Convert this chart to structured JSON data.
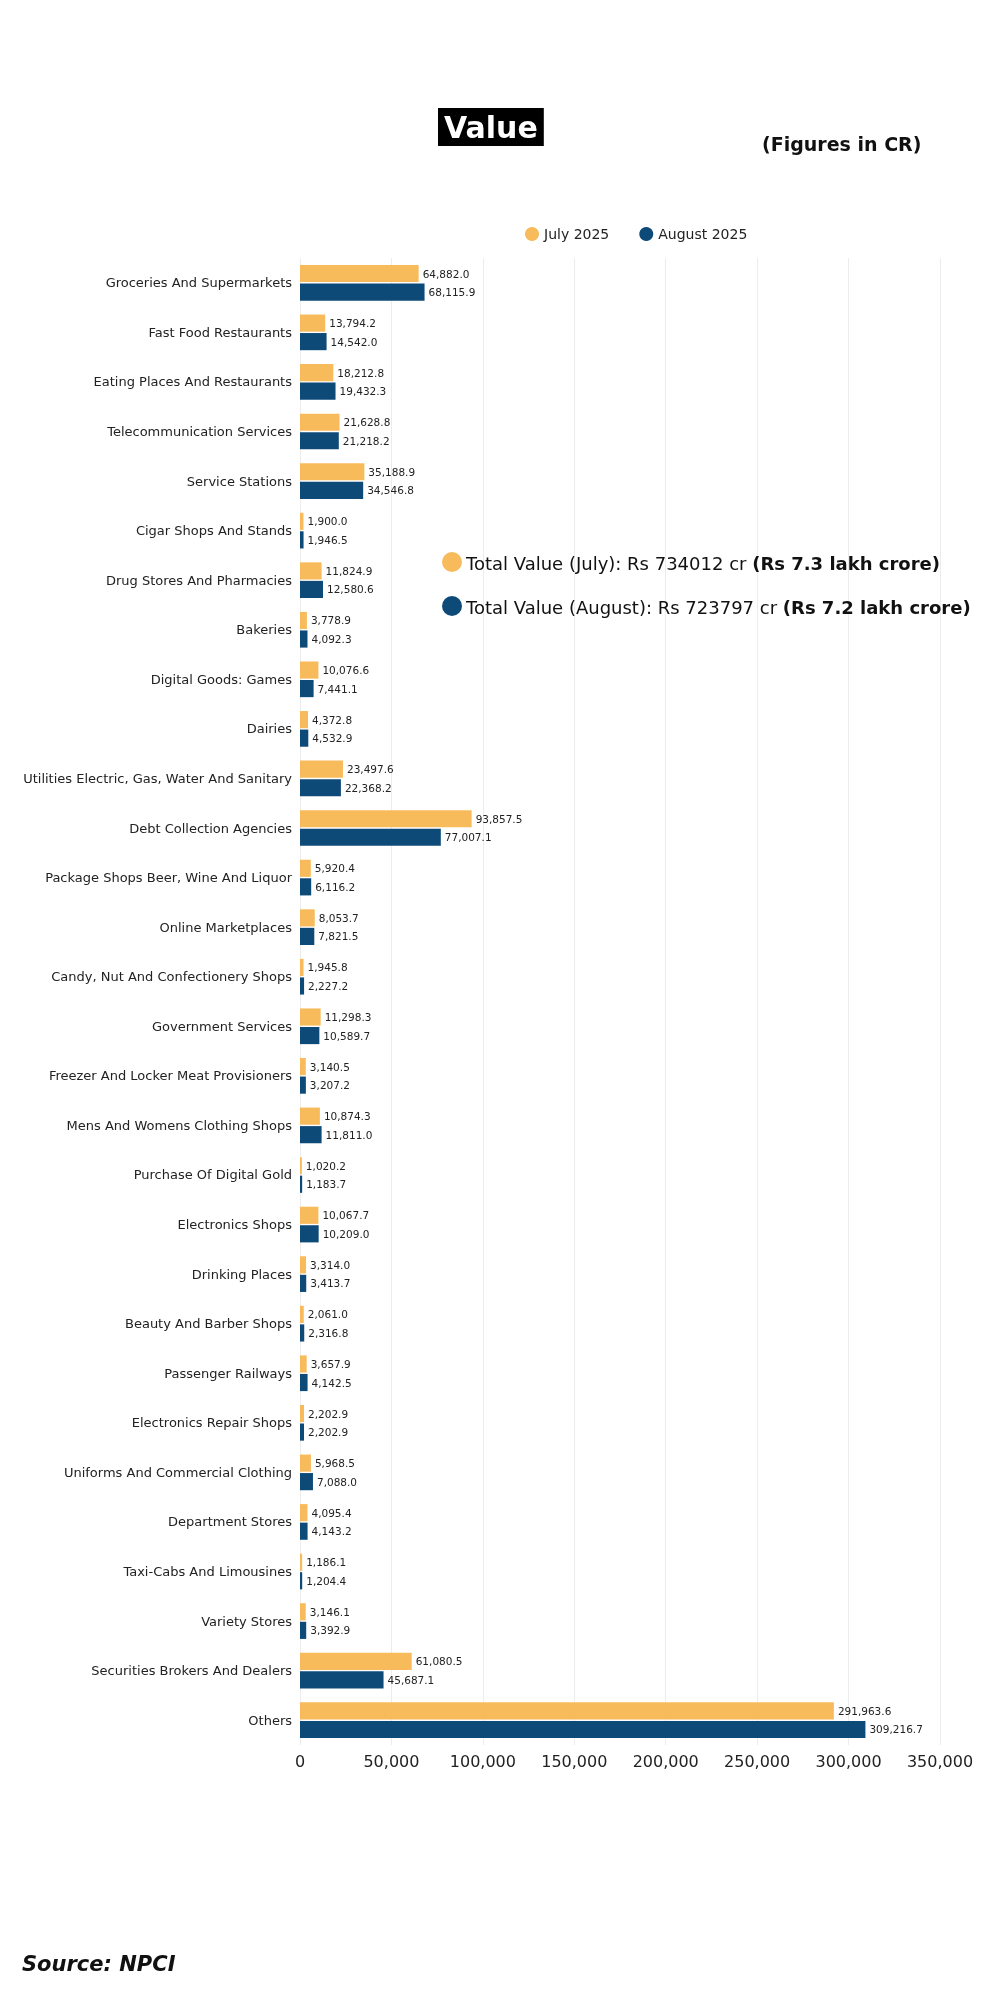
{
  "chart_data": {
    "type": "bar",
    "orientation": "horizontal",
    "title": "Value",
    "categories": [
      "Groceries And Supermarkets",
      "Fast Food Restaurants",
      "Eating Places And Restaurants",
      "Telecommunication Services",
      "Service Stations",
      "Cigar Shops And Stands",
      "Drug Stores And Pharmacies",
      "Bakeries",
      "Digital Goods: Games",
      "Dairies",
      "Utilities Electric, Gas, Water And Sanitary",
      "Debt Collection Agencies",
      "Package Shops Beer, Wine And Liquor",
      "Online Marketplaces",
      "Candy, Nut And Confectionery Shops",
      "Government Services",
      "Freezer And Locker Meat Provisioners",
      "Mens And Womens Clothing Shops",
      "Purchase Of Digital Gold",
      "Electronics Shops",
      "Drinking Places",
      "Beauty And Barber Shops",
      "Passenger Railways",
      "Electronics Repair Shops",
      "Uniforms And Commercial Clothing",
      "Department Stores",
      "Taxi-Cabs And Limousines",
      "Variety Stores",
      "Securities Brokers And Dealers",
      "Others"
    ],
    "series": [
      {
        "name": "July 2025",
        "color": "#f8bb5c",
        "values": [
          64882.0,
          13794.2,
          18212.8,
          21628.8,
          35188.9,
          1900.0,
          11824.9,
          3778.9,
          10076.6,
          4372.8,
          23497.6,
          93857.5,
          5920.4,
          8053.7,
          1945.8,
          11298.3,
          3140.5,
          10874.3,
          1020.2,
          10067.7,
          3314.0,
          2061.0,
          3657.9,
          2202.9,
          5968.5,
          4095.4,
          1186.1,
          3146.1,
          61080.5,
          291963.6
        ],
        "value_labels": [
          "64,882.0",
          "13,794.2",
          "18,212.8",
          "21,628.8",
          "35,188.9",
          "1,900.0",
          "11,824.9",
          "3,778.9",
          "10,076.6",
          "4,372.8",
          "23,497.6",
          "93,857.5",
          "5,920.4",
          "8,053.7",
          "1,945.8",
          "11,298.3",
          "3,140.5",
          "10,874.3",
          "1,020.2",
          "10,067.7",
          "3,314.0",
          "2,061.0",
          "3,657.9",
          "2,202.9",
          "5,968.5",
          "4,095.4",
          "1,186.1",
          "3,146.1",
          "61,080.5",
          "291,963.6"
        ]
      },
      {
        "name": "August 2025",
        "color": "#0e4a78",
        "values": [
          68115.9,
          14542.0,
          19432.3,
          21218.2,
          34546.8,
          1946.5,
          12580.6,
          4092.3,
          7441.1,
          4532.9,
          22368.2,
          77007.1,
          6116.2,
          7821.5,
          2227.2,
          10589.7,
          3207.2,
          11811.0,
          1183.7,
          10209.0,
          3413.7,
          2316.8,
          4142.5,
          2202.9,
          7088.0,
          4143.2,
          1204.4,
          3392.9,
          45687.1,
          309216.7
        ],
        "value_labels": [
          "68,115.9",
          "14,542.0",
          "19,432.3",
          "21,218.2",
          "34,546.8",
          "1,946.5",
          "12,580.6",
          "4,092.3",
          "7,441.1",
          "4,532.9",
          "22,368.2",
          "77,007.1",
          "6,116.2",
          "7,821.5",
          "2,227.2",
          "10,589.7",
          "3,207.2",
          "11,811.0",
          "1,183.7",
          "10,209.0",
          "3,413.7",
          "2,316.8",
          "4,142.5",
          "2,202.9",
          "7,088.0",
          "4,143.2",
          "1,204.4",
          "3,392.9",
          "45,687.1",
          "309,216.7"
        ]
      }
    ],
    "xlim": [
      0,
      350000
    ],
    "xticks": [
      {
        "value": 0,
        "label": "0"
      },
      {
        "value": 50000,
        "label": "50,000"
      },
      {
        "value": 100000,
        "label": "100,000"
      },
      {
        "value": 150000,
        "label": "150,000"
      },
      {
        "value": 200000,
        "label": "200,000"
      },
      {
        "value": 250000,
        "label": "250,000"
      },
      {
        "value": 300000,
        "label": "300,000"
      },
      {
        "value": 350000,
        "label": "350,000"
      }
    ],
    "grid": "x",
    "legend": "top",
    "annotations": [
      "(Figures in CR)",
      "Total Value (July): Rs 734012 cr (Rs 7.3 lakh crore)",
      "Total Value (August): Rs 723797 cr (Rs 7.2 lakh crore)",
      "Source: NPCI"
    ]
  }
}
